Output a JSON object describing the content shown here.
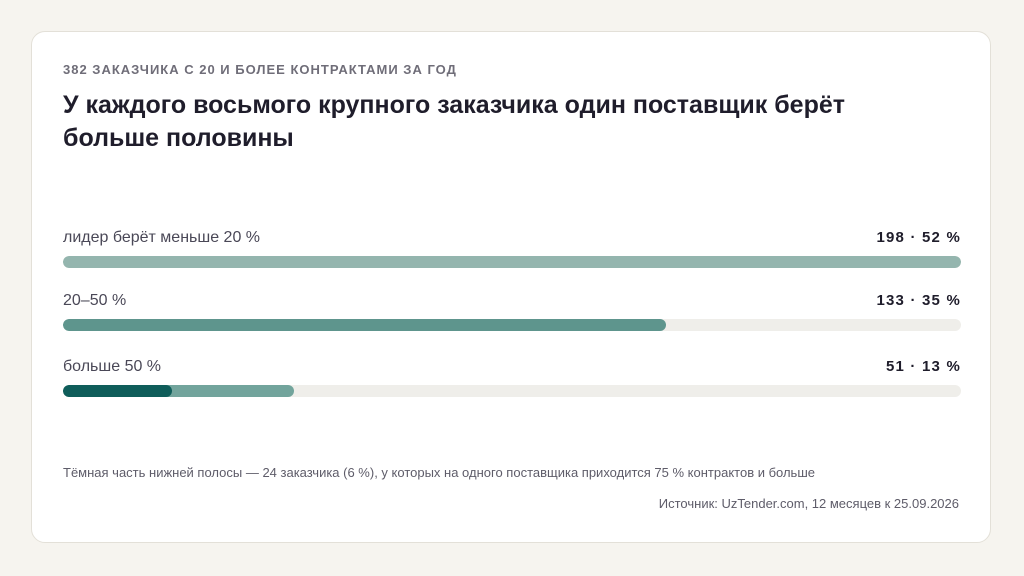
{
  "kicker": "382 заказчика с 20 и более контрактами за год",
  "title": "У каждого восьмого крупного заказчика один поставщик берёт больше половины",
  "colors": {
    "bar1": "#94b5ae",
    "bar2": "#5e958d",
    "bar3": "#72a49c",
    "bar3_dark": "#0f5d5a",
    "track": "#efeeea"
  },
  "chart_data": {
    "type": "bar",
    "orientation": "horizontal",
    "scale_note": "bars scaled to the largest category",
    "categories": [
      "лидер берёт меньше 20 %",
      "20–50 %",
      "больше 50 %"
    ],
    "counts": [
      198,
      133,
      51
    ],
    "shares_percent": [
      52,
      35,
      13
    ],
    "value_labels": [
      "198 · 52 %",
      "133 · 35 %",
      "51 · 13 %"
    ],
    "highlight": {
      "category": "больше 50 %",
      "count": 24,
      "share_percent": 6
    },
    "total": 382
  },
  "footnote": "Тёмная часть нижней полосы — 24 заказчика (6 %), у которых на одного поставщика приходится 75 % контрактов и больше",
  "source": "Источник: UzTender.com, 12 месяцев к 25.09.2026"
}
